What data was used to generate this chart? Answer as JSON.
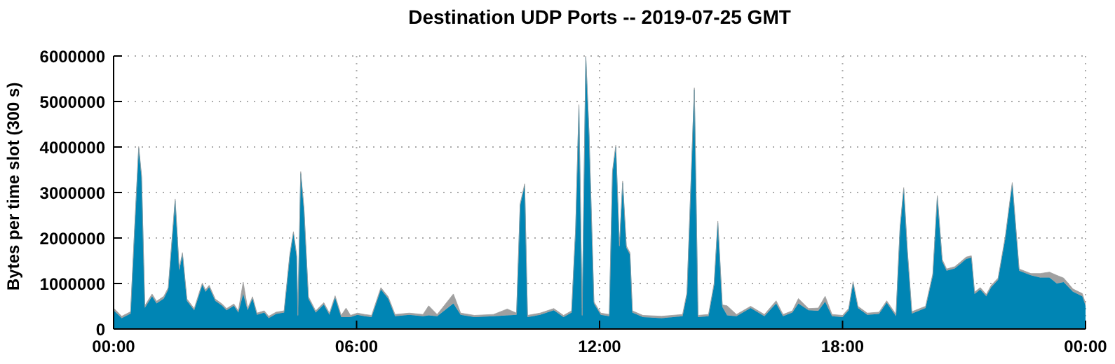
{
  "chart_data": {
    "type": "area",
    "title": "Destination UDP Ports -- 2019-07-25 GMT",
    "ylabel": "Bytes per time slot (300 s)",
    "stacked": true,
    "grid": true,
    "x": [
      0,
      0.2,
      0.42,
      0.51,
      0.62,
      0.69,
      0.77,
      0.95,
      1.06,
      1.24,
      1.35,
      1.52,
      1.62,
      1.7,
      1.81,
      1.99,
      2.19,
      2.27,
      2.36,
      2.51,
      2.68,
      2.79,
      2.97,
      3.08,
      3.2,
      3.31,
      3.43,
      3.54,
      3.72,
      3.83,
      4.01,
      4.21,
      4.35,
      4.44,
      4.52,
      4.55,
      4.62,
      4.7,
      4.81,
      4.99,
      5.19,
      5.33,
      5.47,
      5.62,
      5.74,
      5.85,
      6.02,
      6.2,
      6.37,
      6.6,
      6.78,
      6.95,
      7.3,
      7.64,
      7.78,
      7.99,
      8.39,
      8.57,
      8.91,
      9.38,
      9.72,
      9.95,
      10.04,
      10.15,
      10.22,
      10.53,
      10.87,
      11.11,
      11.31,
      11.41,
      11.49,
      11.57,
      11.66,
      11.74,
      11.86,
      12.03,
      12.24,
      12.32,
      12.4,
      12.49,
      12.57,
      12.66,
      12.75,
      12.81,
      13.07,
      13.53,
      14.05,
      14.16,
      14.34,
      14.43,
      14.69,
      14.83,
      14.92,
      15.03,
      15.15,
      15.38,
      15.73,
      16.07,
      16.36,
      16.53,
      16.76,
      16.91,
      17.16,
      17.4,
      17.57,
      17.74,
      18,
      18.15,
      18.26,
      18.38,
      18.61,
      18.9,
      19.09,
      19.32,
      19.42,
      19.51,
      19.6,
      19.71,
      20.05,
      20.23,
      20.34,
      20.46,
      20.57,
      20.77,
      20.92,
      21.05,
      21.18,
      21.26,
      21.4,
      21.55,
      21.67,
      21.84,
      22.02,
      22.19,
      22.36,
      22.65,
      22.88,
      23.11,
      23.29,
      23.46,
      23.69,
      23.92,
      24
    ],
    "series": [
      {
        "color": "#0085b4",
        "values": [
          410000,
          240000,
          340000,
          2000000,
          3970000,
          3330000,
          460000,
          720000,
          560000,
          670000,
          870000,
          2820000,
          1280000,
          1640000,
          620000,
          410000,
          970000,
          820000,
          920000,
          620000,
          510000,
          410000,
          510000,
          360000,
          770000,
          410000,
          670000,
          310000,
          360000,
          240000,
          330000,
          360000,
          1590000,
          2100000,
          1590000,
          260000,
          3420000,
          2620000,
          670000,
          360000,
          540000,
          310000,
          690000,
          260000,
          260000,
          260000,
          310000,
          280000,
          260000,
          870000,
          670000,
          280000,
          310000,
          280000,
          300000,
          280000,
          560000,
          310000,
          260000,
          280000,
          300000,
          310000,
          2720000,
          3150000,
          260000,
          310000,
          410000,
          260000,
          360000,
          2200000,
          4890000,
          260000,
          5970000,
          4260000,
          560000,
          310000,
          280000,
          3440000,
          4000000,
          1790000,
          3210000,
          1790000,
          1640000,
          360000,
          260000,
          240000,
          280000,
          770000,
          5260000,
          260000,
          280000,
          970000,
          2330000,
          490000,
          300000,
          280000,
          460000,
          280000,
          560000,
          280000,
          360000,
          560000,
          410000,
          400000,
          600000,
          280000,
          260000,
          410000,
          1000000,
          460000,
          310000,
          330000,
          580000,
          280000,
          2200000,
          3070000,
          1690000,
          340000,
          460000,
          1180000,
          2890000,
          1490000,
          1280000,
          1330000,
          1440000,
          1540000,
          1570000,
          770000,
          870000,
          720000,
          920000,
          1080000,
          2000000,
          3180000,
          1280000,
          1180000,
          1130000,
          1130000,
          1000000,
          1030000,
          820000,
          720000,
          510000
        ]
      },
      {
        "color": "#a0a0a0",
        "values": [
          50000,
          40000,
          40000,
          40000,
          40000,
          40000,
          50000,
          50000,
          50000,
          50000,
          40000,
          40000,
          40000,
          40000,
          40000,
          40000,
          40000,
          40000,
          40000,
          40000,
          40000,
          40000,
          40000,
          40000,
          260000,
          40000,
          40000,
          40000,
          40000,
          40000,
          40000,
          40000,
          40000,
          40000,
          40000,
          40000,
          40000,
          40000,
          40000,
          40000,
          40000,
          40000,
          40000,
          40000,
          200000,
          40000,
          40000,
          40000,
          40000,
          40000,
          40000,
          40000,
          40000,
          40000,
          210000,
          40000,
          210000,
          40000,
          40000,
          40000,
          140000,
          40000,
          40000,
          40000,
          40000,
          40000,
          40000,
          40000,
          40000,
          40000,
          40000,
          40000,
          40000,
          40000,
          40000,
          40000,
          40000,
          40000,
          40000,
          40000,
          40000,
          40000,
          40000,
          40000,
          40000,
          40000,
          40000,
          40000,
          40000,
          40000,
          40000,
          40000,
          40000,
          40000,
          210000,
          40000,
          40000,
          40000,
          60000,
          40000,
          40000,
          110000,
          40000,
          60000,
          120000,
          40000,
          40000,
          40000,
          40000,
          40000,
          40000,
          40000,
          40000,
          40000,
          40000,
          40000,
          40000,
          40000,
          40000,
          40000,
          40000,
          40000,
          40000,
          40000,
          40000,
          40000,
          40000,
          40000,
          40000,
          40000,
          40000,
          40000,
          40000,
          40000,
          40000,
          40000,
          90000,
          120000,
          180000,
          90000,
          60000,
          60000,
          50000
        ]
      }
    ],
    "xlim": [
      0,
      24
    ],
    "xticks": [
      {
        "value": 0,
        "label": "00:00"
      },
      {
        "value": 6,
        "label": "06:00"
      },
      {
        "value": 12,
        "label": "12:00"
      },
      {
        "value": 18,
        "label": "18:00"
      },
      {
        "value": 24,
        "label": "00:00"
      }
    ],
    "ylim": [
      0,
      6000000
    ],
    "yticks": [
      0,
      1000000,
      2000000,
      3000000,
      4000000,
      5000000,
      6000000
    ]
  }
}
